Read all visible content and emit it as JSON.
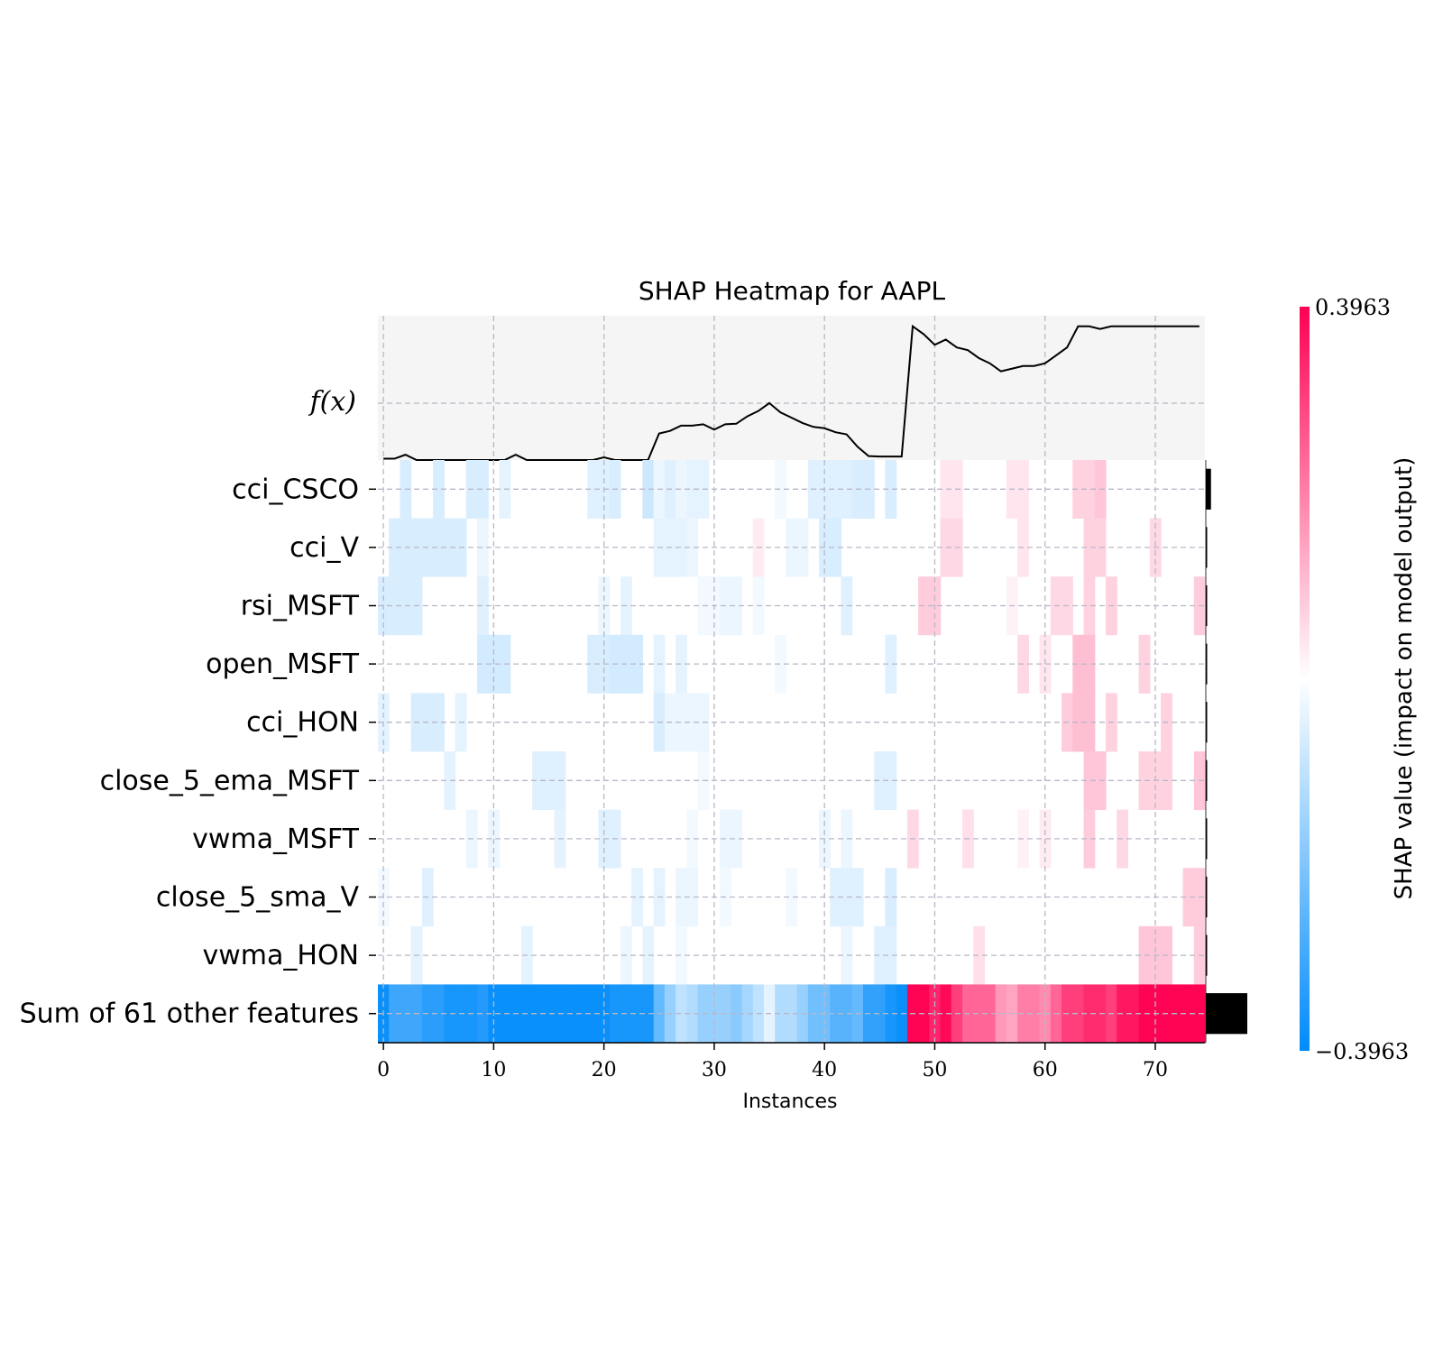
{
  "chart_data": {
    "type": "heatmap",
    "title": "SHAP Heatmap for AAPL",
    "xlabel": "Instances",
    "fx_label": "f(x)",
    "colorbar_label": "SHAP value (impact on model output)",
    "colorbar_max_label": "0.3963",
    "colorbar_min_label": "−0.3963",
    "vmin": -0.3963,
    "vmax": 0.3963,
    "n_instances": 75,
    "xlim": [
      -0.5,
      74.5
    ],
    "x_ticks": [
      0,
      10,
      20,
      30,
      40,
      50,
      60,
      70
    ],
    "x_tick_labels": [
      "0",
      "10",
      "20",
      "30",
      "40",
      "50",
      "60",
      "70"
    ],
    "grid": true,
    "colors": {
      "negative": "#008bfb",
      "positive": "#ff0052",
      "fx_panel_bg": "#f5f5f5",
      "line": "#000000"
    },
    "features": [
      "cci_CSCO",
      "cci_V",
      "rsi_MSFT",
      "open_MSFT",
      "cci_HON",
      "close_5_ema_MSFT",
      "vwma_MSFT",
      "close_5_sma_V",
      "vwma_HON",
      "Sum of 61 other features"
    ],
    "feature_importance": [
      0.01,
      0.002,
      0.002,
      0.002,
      0.002,
      0.002,
      0.002,
      0.002,
      0.002,
      0.08
    ],
    "fx": [
      -0.2,
      -0.2,
      -0.185,
      -0.205,
      -0.205,
      -0.205,
      -0.205,
      -0.205,
      -0.205,
      -0.205,
      -0.205,
      -0.205,
      -0.185,
      -0.205,
      -0.205,
      -0.205,
      -0.205,
      -0.205,
      -0.205,
      -0.205,
      -0.195,
      -0.205,
      -0.205,
      -0.205,
      -0.205,
      -0.105,
      -0.095,
      -0.075,
      -0.075,
      -0.07,
      -0.09,
      -0.07,
      -0.068,
      -0.04,
      -0.02,
      0.01,
      -0.025,
      -0.045,
      -0.065,
      -0.08,
      -0.085,
      -0.1,
      -0.108,
      -0.155,
      -0.19,
      -0.192,
      -0.192,
      -0.192,
      0.3,
      0.27,
      0.23,
      0.25,
      0.22,
      0.21,
      0.18,
      0.16,
      0.13,
      0.14,
      0.15,
      0.15,
      0.16,
      0.19,
      0.22,
      0.3,
      0.3,
      0.29,
      0.3,
      0.3,
      0.3,
      0.3,
      0.3,
      0.3,
      0.3,
      0.3,
      0.3
    ],
    "values": [
      [
        0,
        0,
        -0.06,
        0,
        0,
        -0.06,
        0,
        0,
        -0.06,
        -0.06,
        0,
        -0.04,
        0,
        0,
        0,
        0,
        0,
        0,
        0,
        -0.05,
        -0.05,
        -0.06,
        0,
        0,
        -0.08,
        -0.03,
        -0.05,
        -0.03,
        -0.04,
        -0.04,
        0,
        0,
        0,
        0,
        0,
        0,
        -0.02,
        0,
        0,
        -0.05,
        -0.05,
        -0.05,
        -0.05,
        -0.06,
        -0.06,
        0,
        -0.06,
        0,
        0,
        0,
        0,
        0.04,
        0.04,
        0,
        0,
        0,
        0,
        0.04,
        0.04,
        0,
        0,
        0,
        0,
        0.07,
        0.07,
        0.09,
        0,
        0,
        0,
        0,
        0,
        0,
        0,
        0,
        0
      ],
      [
        0,
        -0.06,
        -0.06,
        -0.06,
        -0.06,
        -0.06,
        -0.06,
        -0.06,
        0,
        -0.03,
        0,
        0,
        0,
        0,
        0,
        0,
        0,
        0,
        0,
        0,
        0,
        0,
        0,
        0,
        0,
        -0.04,
        -0.04,
        -0.04,
        -0.03,
        0,
        0,
        0,
        0,
        0,
        0.03,
        0,
        0,
        -0.03,
        -0.03,
        0,
        -0.06,
        -0.06,
        0,
        0,
        0,
        0,
        0,
        0,
        0,
        0,
        0,
        0.06,
        0.06,
        0,
        0,
        0,
        0,
        0,
        0.04,
        0,
        0,
        0,
        0,
        0,
        0.07,
        0.07,
        0,
        0,
        0,
        0,
        0.06,
        0,
        0,
        0,
        0
      ],
      [
        -0.06,
        -0.06,
        -0.06,
        -0.06,
        0,
        0,
        0,
        0,
        0,
        -0.05,
        0,
        0,
        0,
        0,
        0,
        0,
        0,
        0,
        0,
        0,
        -0.03,
        0,
        -0.04,
        0,
        0,
        0,
        0,
        0,
        0,
        -0.02,
        -0.02,
        -0.03,
        -0.03,
        0,
        -0.02,
        0,
        0,
        0,
        0,
        0,
        0,
        0,
        -0.05,
        0,
        0,
        0,
        0,
        0,
        0,
        0.08,
        0.08,
        0,
        0,
        0,
        0,
        0,
        0,
        0.02,
        0,
        0,
        0,
        0.06,
        0.06,
        0,
        0.07,
        0,
        0.07,
        0,
        0,
        0,
        0,
        0,
        0,
        0,
        0.08
      ],
      [
        0,
        0,
        0,
        0,
        0,
        0,
        0,
        0,
        0,
        -0.07,
        -0.07,
        -0.07,
        0,
        0,
        0,
        0,
        0,
        0,
        0,
        -0.06,
        -0.06,
        -0.07,
        -0.07,
        -0.07,
        0,
        -0.04,
        0,
        -0.04,
        0,
        0,
        0,
        0,
        0,
        0,
        0,
        0,
        -0.02,
        0,
        0,
        0,
        0,
        0,
        0,
        0,
        0,
        0,
        -0.05,
        0,
        0,
        0,
        0,
        0,
        0,
        0,
        0,
        0,
        0,
        0,
        0.06,
        0,
        0.04,
        0,
        0,
        0.1,
        0.1,
        0,
        0,
        0,
        0,
        0.07,
        0,
        0,
        0,
        0,
        0
      ],
      [
        -0.04,
        0,
        0,
        -0.06,
        -0.06,
        -0.06,
        0,
        -0.04,
        0,
        0,
        0,
        0,
        0,
        0,
        0,
        0,
        0,
        0,
        0,
        0,
        0,
        0,
        0,
        0,
        0,
        -0.06,
        -0.03,
        -0.03,
        -0.03,
        -0.03,
        0,
        0,
        0,
        0,
        0,
        0,
        0,
        0,
        0,
        0,
        0,
        0,
        0,
        0,
        0,
        0,
        0,
        0,
        0,
        0,
        0,
        0,
        0,
        0,
        0,
        0,
        0,
        0,
        0,
        0,
        0,
        0,
        0.08,
        0.1,
        0.1,
        0,
        0.07,
        0,
        0,
        0,
        0,
        0.07,
        0,
        0,
        0
      ],
      [
        0,
        0,
        0,
        0,
        0,
        0,
        -0.04,
        0,
        0,
        0,
        0,
        0,
        0,
        0,
        -0.05,
        -0.05,
        -0.05,
        0,
        0,
        0,
        0,
        0,
        0,
        0,
        0,
        0,
        0,
        0,
        0,
        -0.02,
        0,
        0,
        0,
        0,
        0,
        0,
        0,
        0,
        0,
        0,
        0,
        0,
        0,
        0,
        0,
        -0.05,
        -0.05,
        0,
        0,
        0,
        0,
        0,
        0,
        0,
        0,
        0,
        0,
        0,
        0,
        0,
        0,
        0,
        0,
        0,
        0.09,
        0.09,
        0,
        0,
        0,
        0.07,
        0.07,
        0.07,
        0,
        0,
        0.09
      ],
      [
        0,
        0,
        0,
        0,
        0,
        0,
        0,
        0,
        -0.03,
        0,
        -0.03,
        0,
        0,
        0,
        0,
        0,
        -0.04,
        0,
        0,
        0,
        -0.05,
        -0.05,
        0,
        0,
        0,
        0,
        0,
        0,
        -0.02,
        0,
        0,
        -0.03,
        -0.03,
        0,
        0,
        0,
        0,
        0,
        0,
        0,
        -0.03,
        0,
        -0.03,
        0,
        0,
        0,
        0,
        0,
        0.06,
        0,
        0,
        0,
        0,
        0.05,
        0,
        0,
        0,
        0,
        0.02,
        0,
        0.03,
        0,
        0,
        0,
        0.08,
        0,
        0,
        0.06,
        0,
        0,
        0,
        0,
        0,
        0,
        0
      ],
      [
        -0.02,
        0,
        0,
        0,
        -0.05,
        0,
        0,
        0,
        0,
        0,
        0,
        0,
        0,
        0,
        0,
        0,
        0,
        0,
        0,
        0,
        0,
        0,
        0,
        -0.04,
        0,
        -0.04,
        0,
        -0.03,
        -0.03,
        0,
        0,
        -0.02,
        0,
        0,
        0,
        0,
        0,
        -0.02,
        0,
        0,
        0,
        -0.05,
        -0.05,
        -0.05,
        0,
        0,
        -0.06,
        0,
        0,
        0,
        0,
        0,
        0,
        0,
        0,
        0,
        0,
        0,
        0,
        0,
        0,
        0,
        0,
        0,
        0,
        0,
        0,
        0,
        0,
        0,
        0,
        0,
        0,
        0.08,
        0.08
      ],
      [
        0,
        0,
        0,
        -0.04,
        0,
        0,
        0,
        0,
        0,
        0,
        0,
        0,
        0,
        -0.04,
        0,
        0,
        0,
        0,
        0,
        0,
        0,
        0,
        -0.03,
        0,
        -0.04,
        0,
        0,
        -0.02,
        0,
        0,
        0,
        0,
        0,
        0,
        0,
        0,
        0,
        0,
        0,
        0,
        0,
        0,
        -0.03,
        0,
        0,
        -0.05,
        -0.05,
        0,
        0,
        0,
        0,
        0,
        0,
        0,
        0.05,
        0,
        0,
        0,
        0,
        0,
        0,
        0,
        0,
        0,
        0,
        0,
        0,
        0,
        0,
        0.09,
        0.09,
        0.09,
        0,
        0,
        0.08
      ],
      [
        -0.38,
        -0.3,
        -0.3,
        -0.3,
        -0.33,
        -0.33,
        -0.36,
        -0.36,
        -0.36,
        -0.34,
        -0.38,
        -0.38,
        -0.38,
        -0.38,
        -0.38,
        -0.38,
        -0.38,
        -0.38,
        -0.38,
        -0.38,
        -0.38,
        -0.36,
        -0.36,
        -0.36,
        -0.36,
        -0.24,
        -0.16,
        -0.1,
        -0.12,
        -0.16,
        -0.16,
        -0.16,
        -0.18,
        -0.14,
        -0.1,
        -0.04,
        -0.12,
        -0.12,
        -0.16,
        -0.22,
        -0.22,
        -0.26,
        -0.26,
        -0.24,
        -0.32,
        -0.32,
        -0.36,
        -0.38,
        0.39,
        0.39,
        0.34,
        0.38,
        0.3,
        0.24,
        0.24,
        0.24,
        0.16,
        0.14,
        0.2,
        0.2,
        0.18,
        0.24,
        0.3,
        0.3,
        0.33,
        0.33,
        0.3,
        0.36,
        0.36,
        0.39,
        0.39,
        0.39,
        0.39,
        0.39,
        0.39
      ]
    ]
  }
}
